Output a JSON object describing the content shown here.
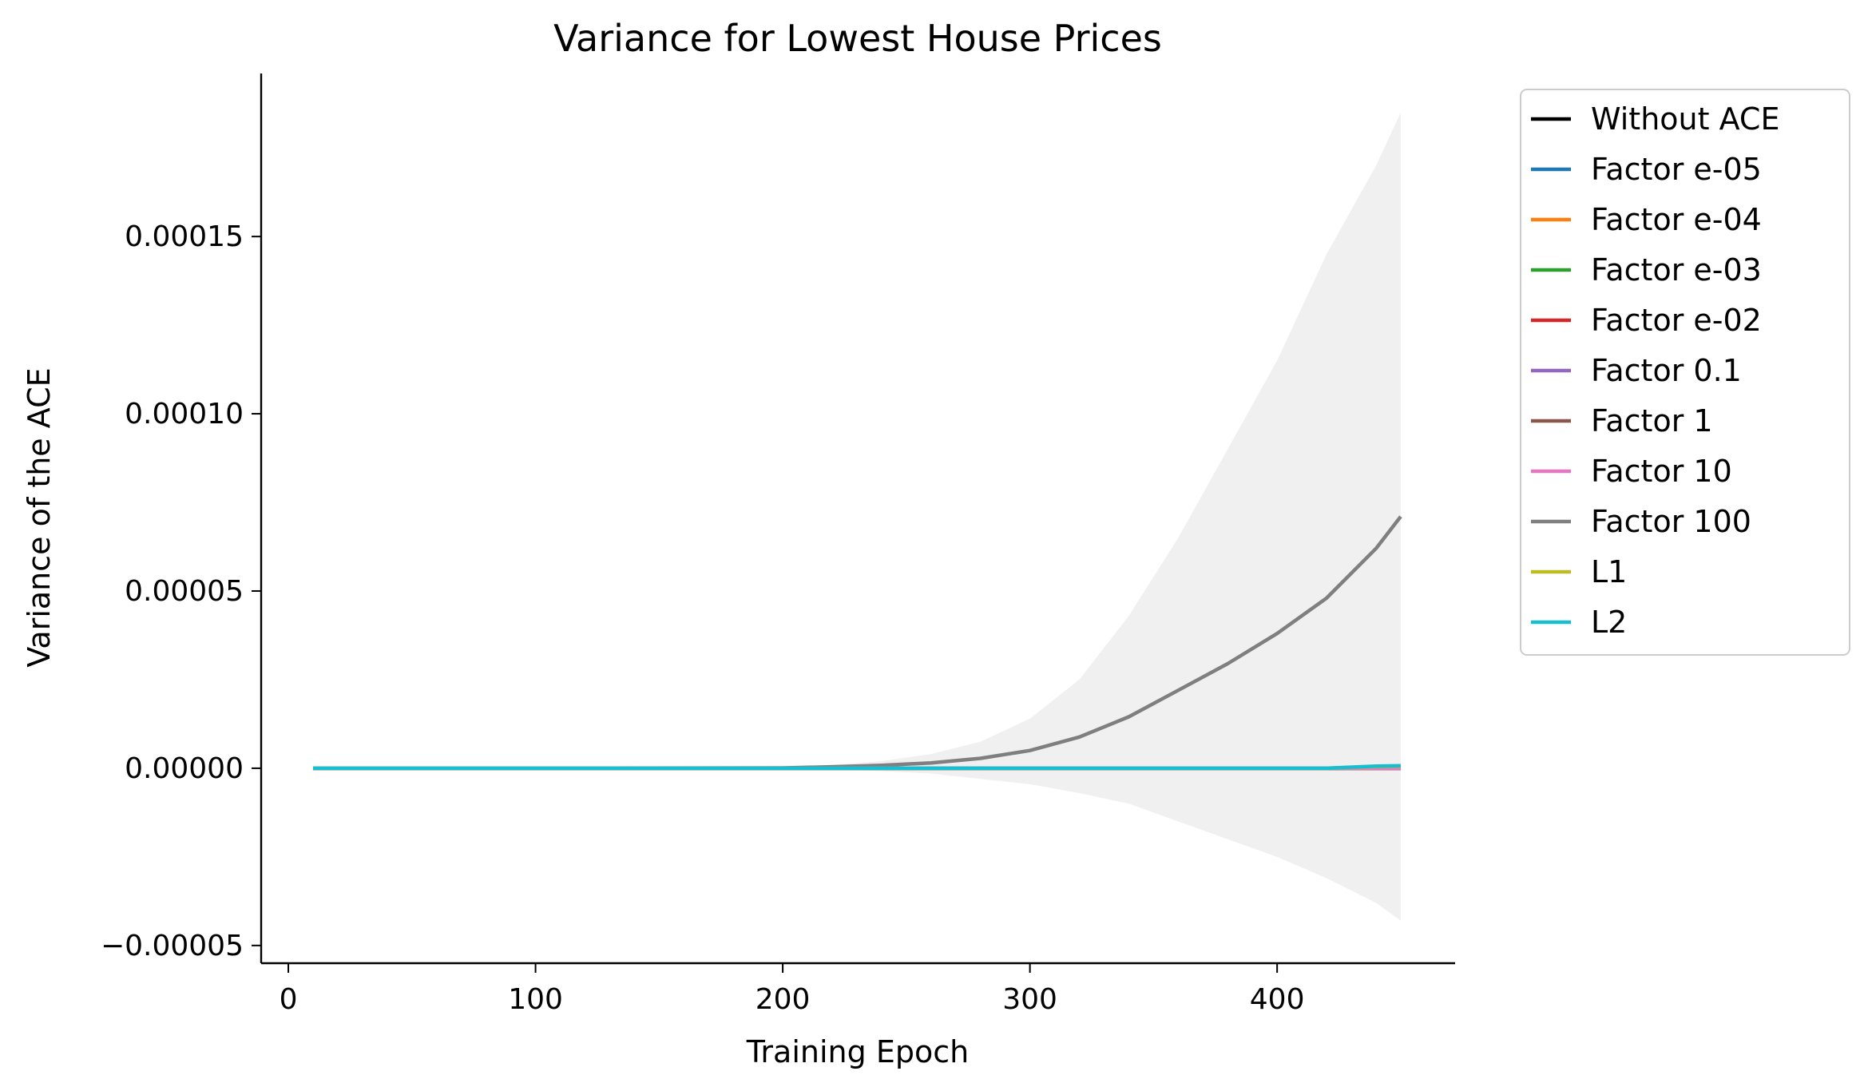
{
  "chart_data": {
    "type": "line",
    "title": "Variance for Lowest House Prices",
    "xlabel": "Training Epoch",
    "ylabel": "Variance of the ACE",
    "xlim": [
      -11,
      472
    ],
    "ylim": [
      -5.5e-05,
      0.000196
    ],
    "xticks": [
      0,
      100,
      200,
      300,
      400
    ],
    "xtick_labels": [
      "0",
      "100",
      "200",
      "300",
      "400"
    ],
    "yticks": [
      -5e-05,
      0.0,
      5e-05,
      0.0001,
      0.00015
    ],
    "ytick_labels": [
      "−0.00005",
      "0.00000",
      "0.00005",
      "0.00010",
      "0.00015"
    ],
    "grid": false,
    "legend": "outside-top-right",
    "x": [
      10,
      100,
      200,
      220,
      240,
      260,
      280,
      300,
      320,
      340,
      360,
      380,
      400,
      420,
      440,
      450
    ],
    "band": {
      "series": "Factor 100",
      "color": "#f0f0f0",
      "upper": [
        0.0,
        0.0,
        5e-07,
        1e-06,
        2e-06,
        4e-06,
        7.5e-06,
        1.4e-05,
        2.5e-05,
        4.3e-05,
        6.5e-05,
        9e-05,
        0.000115,
        0.000145,
        0.00017,
        0.000185
      ],
      "lower": [
        0.0,
        0.0,
        -2e-07,
        -4e-07,
        -8e-07,
        -1.5e-06,
        -3e-06,
        -4.5e-06,
        -7e-06,
        -1e-05,
        -1.5e-05,
        -2e-05,
        -2.5e-05,
        -3.1e-05,
        -3.8e-05,
        -4.3e-05
      ]
    },
    "series": [
      {
        "name": "Without ACE",
        "color": "#000000",
        "values": [
          0,
          0,
          0,
          0,
          0,
          0,
          0,
          0,
          0,
          0,
          0,
          0,
          0,
          0,
          0,
          0
        ]
      },
      {
        "name": "Factor e-05",
        "color": "#1f77b4",
        "values": [
          0,
          0,
          0,
          0,
          0,
          0,
          0,
          0,
          0,
          0,
          0,
          0,
          0,
          0,
          0,
          0
        ]
      },
      {
        "name": "Factor e-04",
        "color": "#ff7f0e",
        "values": [
          0,
          0,
          0,
          0,
          0,
          0,
          0,
          0,
          0,
          0,
          0,
          0,
          0,
          0,
          0,
          0
        ]
      },
      {
        "name": "Factor e-03",
        "color": "#2ca02c",
        "values": [
          0,
          0,
          0,
          0,
          0,
          0,
          0,
          0,
          0,
          0,
          0,
          0,
          0,
          0,
          0,
          0
        ]
      },
      {
        "name": "Factor e-02",
        "color": "#d62728",
        "values": [
          0,
          0,
          0,
          0,
          0,
          0,
          0,
          0,
          0,
          0,
          0,
          0,
          0,
          0,
          0,
          0
        ]
      },
      {
        "name": "Factor 0.1",
        "color": "#9467bd",
        "values": [
          0,
          0,
          0,
          0,
          0,
          0,
          0,
          0,
          0,
          0,
          0,
          0,
          0,
          0,
          0,
          0
        ]
      },
      {
        "name": "Factor 1",
        "color": "#8c564b",
        "values": [
          0,
          0,
          0,
          0,
          0,
          0,
          0,
          0,
          0,
          0,
          0,
          0,
          0,
          0,
          0,
          0
        ]
      },
      {
        "name": "Factor 10",
        "color": "#e377c2",
        "values": [
          0,
          0,
          0,
          0,
          0,
          0,
          0,
          0,
          0,
          0,
          0,
          0,
          0,
          0,
          0,
          0
        ]
      },
      {
        "name": "Factor 100",
        "color": "#7f7f7f",
        "values": [
          0.0,
          0.0,
          1e-07,
          4e-07,
          8e-07,
          1.5e-06,
          2.8e-06,
          5e-06,
          8.8e-06,
          1.45e-05,
          2.2e-05,
          2.95e-05,
          3.8e-05,
          4.8e-05,
          6.2e-05,
          7.1e-05
        ]
      },
      {
        "name": "L1",
        "color": "#bcbd22",
        "values": [
          0,
          0,
          0,
          0,
          0,
          0,
          0,
          0,
          0,
          0,
          0,
          0,
          0,
          0,
          5e-07,
          6e-07
        ]
      },
      {
        "name": "L2",
        "color": "#17becf",
        "values": [
          0,
          0,
          0,
          0,
          0,
          0,
          0,
          0,
          0,
          0,
          0,
          0,
          0,
          0,
          6e-07,
          7e-07
        ]
      }
    ]
  }
}
